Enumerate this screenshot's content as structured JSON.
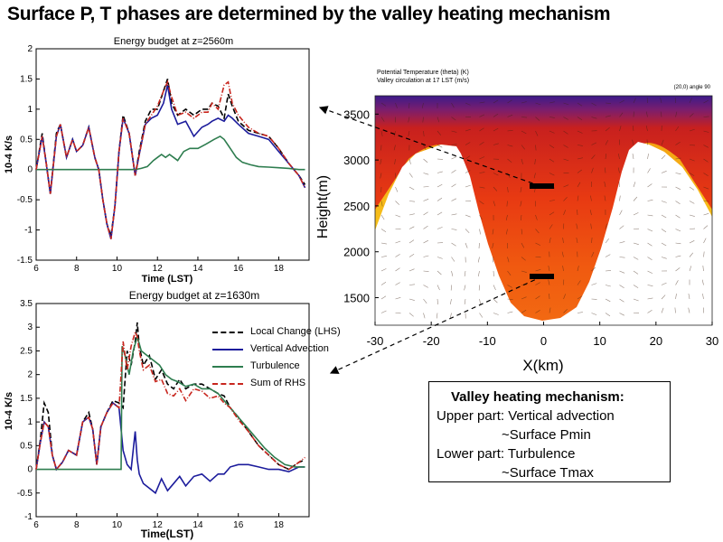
{
  "slide_title": "Surface P, T phases are determined by the valley heating mechanism",
  "chart_data": [
    {
      "type": "line",
      "title": "Energy budget at z=2560m",
      "xlabel": "Time (LST)",
      "ylabel": "10-4 K/s",
      "xlim": [
        6,
        19.5
      ],
      "ylim": [
        -1.5,
        2
      ],
      "xticks": [
        6,
        8,
        10,
        12,
        14,
        16,
        18
      ],
      "yticks": [
        -1.5,
        -1,
        -0.5,
        0,
        0.5,
        1,
        1.5,
        2
      ],
      "ytick_labels": [
        "-1.5",
        "-1",
        "-0.5",
        "0",
        "0.5",
        "1",
        "1.5",
        "2"
      ],
      "series": [
        {
          "key": "local",
          "color": "#000000",
          "dash": "6,3",
          "x": [
            6,
            6.3,
            6.5,
            6.7,
            7,
            7.2,
            7.5,
            7.8,
            8,
            8.3,
            8.6,
            8.9,
            9.1,
            9.3,
            9.5,
            9.7,
            9.9,
            10.1,
            10.3,
            10.6,
            10.9,
            11.1,
            11.4,
            11.7,
            12,
            12.3,
            12.5,
            12.7,
            13,
            13.4,
            13.8,
            14.2,
            14.5,
            14.7,
            15,
            15.3,
            15.5,
            15.7,
            16,
            16.5,
            17,
            17.5,
            18,
            18.5,
            19,
            19.3
          ],
          "y": [
            0,
            0.6,
            0.1,
            -0.4,
            0.6,
            0.75,
            0.2,
            0.5,
            0.3,
            0.4,
            0.7,
            0.2,
            0.0,
            -0.5,
            -0.9,
            -1.1,
            -0.6,
            0.3,
            0.9,
            0.6,
            -0.1,
            0.3,
            0.8,
            1.0,
            1.0,
            1.3,
            1.5,
            1.1,
            0.9,
            1.0,
            0.9,
            1.0,
            1.0,
            1.1,
            1.05,
            0.85,
            1.25,
            1.05,
            0.8,
            0.65,
            0.6,
            0.55,
            0.35,
            0.1,
            -0.1,
            -0.25
          ]
        },
        {
          "key": "vadv",
          "color": "#1c1c9c",
          "dash": "",
          "x": [
            6,
            6.3,
            6.5,
            6.7,
            7,
            7.2,
            7.5,
            7.8,
            8,
            8.3,
            8.6,
            8.9,
            9.1,
            9.3,
            9.5,
            9.7,
            9.9,
            10.1,
            10.3,
            10.6,
            10.9,
            11.1,
            11.4,
            11.7,
            12,
            12.3,
            12.5,
            12.7,
            13,
            13.4,
            13.8,
            14.2,
            14.5,
            14.7,
            15,
            15.3,
            15.5,
            15.7,
            16,
            16.5,
            17,
            17.5,
            18,
            18.5,
            19,
            19.3
          ],
          "y": [
            0,
            0.55,
            0.1,
            -0.4,
            0.55,
            0.75,
            0.2,
            0.5,
            0.3,
            0.4,
            0.7,
            0.2,
            0.0,
            -0.5,
            -0.9,
            -1.15,
            -0.6,
            0.3,
            0.85,
            0.6,
            -0.1,
            0.25,
            0.75,
            0.85,
            0.9,
            1.1,
            1.4,
            1.0,
            0.75,
            0.8,
            0.55,
            0.7,
            0.75,
            0.8,
            0.85,
            0.8,
            0.9,
            0.85,
            0.75,
            0.6,
            0.55,
            0.5,
            0.3,
            0.1,
            -0.1,
            -0.3
          ]
        },
        {
          "key": "turb",
          "color": "#2e7d4f",
          "dash": "",
          "x": [
            6,
            7,
            8,
            9,
            10,
            10.9,
            11.2,
            11.5,
            11.8,
            12,
            12.2,
            12.4,
            12.6,
            12.8,
            13,
            13.3,
            13.6,
            14,
            14.4,
            14.8,
            15.1,
            15.3,
            15.6,
            15.9,
            16.2,
            16.6,
            17,
            17.5,
            18,
            18.5,
            19,
            19.3
          ],
          "y": [
            0,
            0,
            0,
            0,
            0,
            0,
            0.02,
            0.05,
            0.15,
            0.2,
            0.25,
            0.2,
            0.25,
            0.2,
            0.15,
            0.3,
            0.35,
            0.35,
            0.42,
            0.5,
            0.55,
            0.5,
            0.35,
            0.2,
            0.12,
            0.08,
            0.05,
            0.04,
            0.03,
            0.02,
            0,
            0
          ]
        },
        {
          "key": "rhs",
          "color": "#c8261e",
          "dash": "6,2,1,2",
          "x": [
            6,
            6.3,
            6.5,
            6.7,
            7,
            7.2,
            7.5,
            7.8,
            8,
            8.3,
            8.6,
            8.9,
            9.1,
            9.3,
            9.5,
            9.7,
            9.9,
            10.1,
            10.3,
            10.6,
            10.9,
            11.1,
            11.4,
            11.7,
            12,
            12.3,
            12.5,
            12.7,
            13,
            13.4,
            13.8,
            14.2,
            14.5,
            14.7,
            15,
            15.3,
            15.5,
            15.7,
            16,
            16.5,
            17,
            17.5,
            18,
            18.5,
            19,
            19.3
          ],
          "y": [
            0,
            0.55,
            0.1,
            -0.4,
            0.55,
            0.75,
            0.2,
            0.5,
            0.3,
            0.4,
            0.7,
            0.2,
            0.0,
            -0.5,
            -0.9,
            -1.15,
            -0.6,
            0.3,
            0.85,
            0.6,
            -0.1,
            0.25,
            0.75,
            0.9,
            1.05,
            1.3,
            1.45,
            1.2,
            0.9,
            0.95,
            0.85,
            0.95,
            0.95,
            1.1,
            1.0,
            1.4,
            1.45,
            1.1,
            0.9,
            0.7,
            0.6,
            0.55,
            0.35,
            0.1,
            -0.1,
            -0.3
          ]
        }
      ]
    },
    {
      "type": "line",
      "title": "Energy budget at z=1630m",
      "xlabel": "Time(LST)",
      "ylabel": "10-4 K/s",
      "xlim": [
        6,
        19.5
      ],
      "ylim": [
        -1,
        3.5
      ],
      "xticks": [
        6,
        8,
        10,
        12,
        14,
        16,
        18
      ],
      "yticks": [
        -1,
        -0.5,
        0,
        0.5,
        1,
        1.5,
        2,
        2.5,
        3,
        3.5
      ],
      "ytick_labels": [
        "-1",
        "-0.5",
        "0",
        "0.5",
        "1",
        "1.5",
        "2",
        "2.5",
        "3",
        "3.5"
      ],
      "legend": [
        {
          "key": "local",
          "label": "Local Change (LHS)",
          "color": "#000000",
          "dash": "6,3"
        },
        {
          "key": "vadv",
          "label": "Vertical Advection",
          "color": "#1c1c9c",
          "dash": ""
        },
        {
          "key": "turb",
          "label": "Turbulence",
          "color": "#2e7d4f",
          "dash": ""
        },
        {
          "key": "rhs",
          "label": "Sum of RHS",
          "color": "#c8261e",
          "dash": "6,2,1,2"
        }
      ],
      "series": [
        {
          "key": "local",
          "color": "#000000",
          "dash": "6,3",
          "x": [
            6,
            6.2,
            6.4,
            6.6,
            6.8,
            7,
            7.3,
            7.6,
            8,
            8.3,
            8.6,
            8.8,
            9,
            9.2,
            9.5,
            9.8,
            10.1,
            10.3,
            10.5,
            10.7,
            10.9,
            11,
            11.1,
            11.3,
            11.6,
            11.9,
            12.2,
            12.5,
            12.8,
            13.1,
            13.4,
            13.8,
            14.2,
            14.6,
            15,
            15.3,
            15.6,
            16,
            16.5,
            17,
            17.5,
            18,
            18.5,
            19,
            19.3
          ],
          "y": [
            0,
            0.6,
            1.4,
            1.2,
            0.3,
            0.0,
            0.15,
            0.4,
            0.3,
            1.0,
            1.2,
            0.85,
            0.1,
            0.9,
            1.2,
            1.45,
            1.4,
            1.3,
            2.5,
            2.2,
            2.7,
            3.1,
            2.6,
            2.2,
            2.4,
            1.9,
            2.1,
            1.8,
            1.7,
            1.9,
            1.7,
            1.8,
            1.8,
            1.7,
            1.6,
            1.55,
            1.3,
            1.1,
            0.8,
            0.5,
            0.3,
            0.1,
            0.0,
            0.15,
            0.2
          ]
        },
        {
          "key": "vadv",
          "color": "#1c1c9c",
          "dash": "",
          "x": [
            6,
            6.2,
            6.4,
            6.6,
            6.8,
            7,
            7.3,
            7.6,
            8,
            8.3,
            8.6,
            8.8,
            9,
            9.2,
            9.5,
            9.8,
            10.1,
            10.3,
            10.5,
            10.7,
            10.9,
            11,
            11.1,
            11.3,
            11.6,
            11.9,
            12.2,
            12.5,
            12.8,
            13.1,
            13.4,
            13.8,
            14.2,
            14.6,
            15,
            15.3,
            15.6,
            16,
            16.5,
            17,
            17.5,
            18,
            18.5,
            19,
            19.3
          ],
          "y": [
            0,
            0.55,
            1.0,
            0.9,
            0.3,
            0.0,
            0.15,
            0.4,
            0.3,
            1.0,
            1.1,
            0.85,
            0.1,
            0.9,
            1.2,
            1.4,
            1.3,
            0.4,
            0.1,
            0.0,
            0.8,
            0.2,
            -0.1,
            -0.3,
            -0.4,
            -0.5,
            -0.2,
            -0.45,
            -0.3,
            -0.15,
            -0.35,
            -0.15,
            -0.1,
            -0.25,
            -0.1,
            -0.1,
            0.05,
            0.1,
            0.1,
            0.05,
            0.0,
            0.0,
            -0.05,
            0.05,
            0.05
          ]
        },
        {
          "key": "turb",
          "color": "#2e7d4f",
          "dash": "",
          "x": [
            6,
            7,
            8,
            9,
            10,
            10.2,
            10.25,
            10.4,
            10.6,
            10.8,
            11,
            11.2,
            11.5,
            11.8,
            12.1,
            12.4,
            12.7,
            13,
            13.4,
            13.8,
            14.2,
            14.6,
            15,
            15.4,
            15.8,
            16.3,
            16.8,
            17.3,
            17.8,
            18.3,
            18.8,
            19.3
          ],
          "y": [
            0,
            0,
            0,
            0,
            0,
            0,
            2.6,
            2.4,
            2.0,
            2.5,
            2.8,
            2.5,
            2.4,
            2.3,
            2.2,
            2.0,
            1.9,
            1.85,
            1.75,
            1.8,
            1.7,
            1.7,
            1.6,
            1.4,
            1.2,
            0.95,
            0.7,
            0.45,
            0.25,
            0.1,
            0.05,
            0.05
          ]
        },
        {
          "key": "rhs",
          "color": "#c8261e",
          "dash": "6,2,1,2",
          "x": [
            6,
            6.2,
            6.4,
            6.6,
            6.8,
            7,
            7.3,
            7.6,
            8,
            8.3,
            8.6,
            8.8,
            9,
            9.2,
            9.5,
            9.8,
            10.1,
            10.3,
            10.5,
            10.7,
            10.9,
            11,
            11.1,
            11.3,
            11.6,
            11.9,
            12.2,
            12.5,
            12.8,
            13.1,
            13.4,
            13.8,
            14.2,
            14.6,
            15,
            15.3,
            15.6,
            16,
            16.5,
            17,
            17.5,
            18,
            18.5,
            19,
            19.3
          ],
          "y": [
            0,
            0.55,
            1.0,
            0.9,
            0.3,
            0.0,
            0.15,
            0.4,
            0.3,
            1.0,
            1.1,
            0.85,
            0.1,
            0.9,
            1.2,
            1.4,
            1.3,
            2.7,
            2.1,
            2.6,
            2.9,
            2.8,
            2.5,
            2.1,
            2.2,
            1.85,
            1.9,
            1.6,
            1.55,
            1.7,
            1.45,
            1.7,
            1.65,
            1.5,
            1.55,
            1.4,
            1.3,
            1.05,
            0.8,
            0.5,
            0.3,
            0.1,
            0.0,
            0.15,
            0.25
          ]
        }
      ]
    },
    {
      "type": "heatmap",
      "header_line1": "Potential Temperature (theta)   (K)",
      "header_line2": "Valley circulation at 17 LST   (m/s)",
      "header_right": "(20,0) angle 90",
      "xlabel": "X(km)",
      "ylabel": "Height(m)",
      "xlim": [
        -30,
        30
      ],
      "ylim": [
        1200,
        3700
      ],
      "xticks": [
        -30,
        -20,
        -10,
        0,
        10,
        20,
        30
      ],
      "yticks": [
        1500,
        2000,
        2500,
        3000,
        3500
      ],
      "markers": [
        {
          "x": -0.5,
          "y": 2625
        },
        {
          "x": -0.5,
          "y": 1665
        }
      ]
    }
  ],
  "mechanism_box": {
    "heading": "Valley heating mechanism:",
    "upper_label": "Upper part: Vertical advection",
    "upper_detail": "~Surface Pmin",
    "lower_label": "Lower part: Turbulence",
    "lower_detail": "~Surface Tmax"
  }
}
